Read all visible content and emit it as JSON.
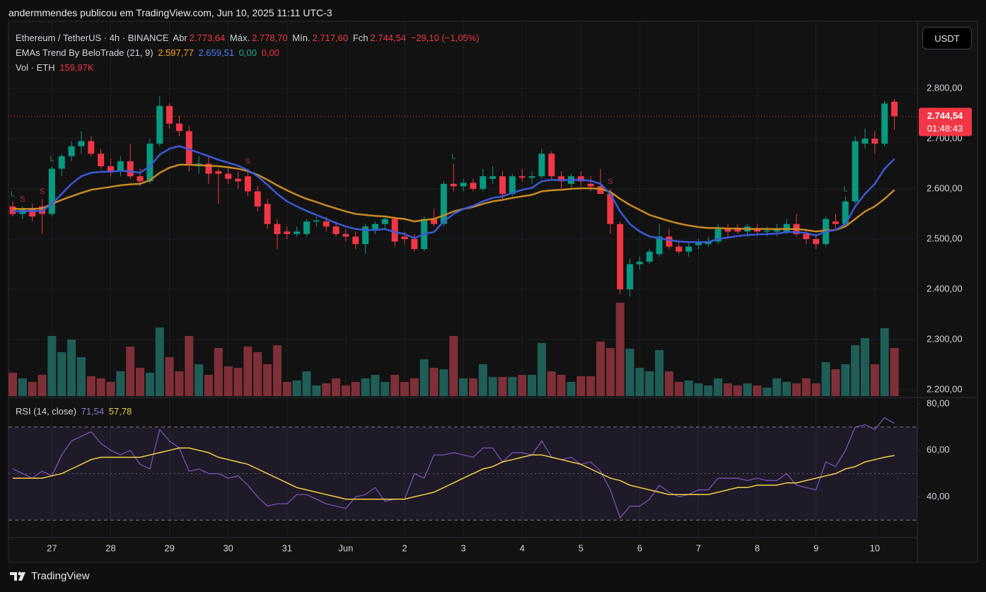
{
  "header": {
    "caption": "andermmendes publicou em TradingView.com, Jun 10, 2025 11:11 UTC-3",
    "currency_button": "USDT",
    "brand": "TradingView"
  },
  "chart_data": {
    "type": "candlestick",
    "legend": {
      "symbol": "Ethereum / TetherUS · 4h · BINANCE",
      "open_label": "Abr",
      "open": "2.773,64",
      "high_label": "Máx.",
      "high": "2.778,70",
      "low_label": "Mín.",
      "low": "2.717,60",
      "close_label": "Fch",
      "close": "2.744,54",
      "change": "−29,10 (−1,05%)",
      "indicator": "EMAs Trend By BeloTrade (21, 9)",
      "indicator_values": [
        "2.597,77",
        "2.659,51",
        "0,00",
        "0,00"
      ],
      "volume": "Vol · ETH",
      "volume_value": "159,97K"
    },
    "categories": [
      null,
      null,
      null,
      null,
      "27",
      null,
      null,
      null,
      null,
      null,
      "28",
      null,
      null,
      null,
      null,
      null,
      "29",
      null,
      null,
      null,
      null,
      null,
      "30",
      null,
      null,
      null,
      null,
      null,
      "31",
      null,
      null,
      null,
      null,
      null,
      "Jun",
      null,
      null,
      null,
      null,
      null,
      "2",
      null,
      null,
      null,
      null,
      null,
      "3",
      null,
      null,
      null,
      null,
      null,
      "4",
      null,
      null,
      null,
      null,
      null,
      "5",
      null,
      null,
      null,
      null,
      null,
      "6",
      null,
      null,
      null,
      null,
      null,
      "7",
      null,
      null,
      null,
      null,
      null,
      "8",
      null,
      null,
      null,
      null,
      null,
      "9",
      null,
      null,
      null,
      null,
      null,
      "10",
      null,
      null
    ],
    "ohlc": [
      [
        2565,
        2575,
        2545,
        2550
      ],
      [
        2550,
        2565,
        2540,
        2560
      ],
      [
        2560,
        2570,
        2535,
        2545
      ],
      [
        2565,
        2580,
        2510,
        2550
      ],
      [
        2550,
        2645,
        2545,
        2640
      ],
      [
        2640,
        2670,
        2625,
        2665
      ],
      [
        2665,
        2695,
        2655,
        2685
      ],
      [
        2685,
        2715,
        2670,
        2695
      ],
      [
        2695,
        2705,
        2665,
        2670
      ],
      [
        2670,
        2680,
        2640,
        2645
      ],
      [
        2645,
        2660,
        2625,
        2635
      ],
      [
        2635,
        2665,
        2625,
        2655
      ],
      [
        2655,
        2690,
        2620,
        2625
      ],
      [
        2625,
        2640,
        2605,
        2615
      ],
      [
        2615,
        2700,
        2610,
        2690
      ],
      [
        2690,
        2785,
        2685,
        2765
      ],
      [
        2765,
        2770,
        2720,
        2730
      ],
      [
        2730,
        2745,
        2705,
        2715
      ],
      [
        2715,
        2725,
        2635,
        2650
      ],
      [
        2645,
        2665,
        2630,
        2650
      ],
      [
        2650,
        2665,
        2610,
        2630
      ],
      [
        2635,
        2640,
        2570,
        2630
      ],
      [
        2630,
        2645,
        2610,
        2620
      ],
      [
        2620,
        2635,
        2600,
        2615
      ],
      [
        2625,
        2640,
        2585,
        2595
      ],
      [
        2595,
        2605,
        2555,
        2565
      ],
      [
        2570,
        2580,
        2520,
        2530
      ],
      [
        2530,
        2540,
        2480,
        2510
      ],
      [
        2515,
        2525,
        2500,
        2510
      ],
      [
        2510,
        2525,
        2505,
        2515
      ],
      [
        2510,
        2540,
        2505,
        2535
      ],
      [
        2535,
        2545,
        2525,
        2537
      ],
      [
        2535,
        2545,
        2515,
        2525
      ],
      [
        2525,
        2535,
        2505,
        2510
      ],
      [
        2510,
        2520,
        2495,
        2505
      ],
      [
        2505,
        2515,
        2480,
        2490
      ],
      [
        2490,
        2530,
        2470,
        2525
      ],
      [
        2520,
        2535,
        2510,
        2530
      ],
      [
        2530,
        2545,
        2520,
        2540
      ],
      [
        2540,
        2545,
        2485,
        2495
      ],
      [
        2505,
        2515,
        2490,
        2500
      ],
      [
        2500,
        2510,
        2475,
        2480
      ],
      [
        2480,
        2545,
        2475,
        2540
      ],
      [
        2540,
        2560,
        2525,
        2530
      ],
      [
        2530,
        2615,
        2525,
        2610
      ],
      [
        2610,
        2650,
        2595,
        2605
      ],
      [
        2605,
        2620,
        2595,
        2612
      ],
      [
        2612,
        2620,
        2595,
        2600
      ],
      [
        2600,
        2640,
        2595,
        2625
      ],
      [
        2620,
        2645,
        2610,
        2625
      ],
      [
        2625,
        2635,
        2580,
        2590
      ],
      [
        2590,
        2630,
        2585,
        2625
      ],
      [
        2625,
        2640,
        2615,
        2622
      ],
      [
        2622,
        2635,
        2610,
        2625
      ],
      [
        2625,
        2680,
        2620,
        2670
      ],
      [
        2670,
        2675,
        2620,
        2625
      ],
      [
        2625,
        2635,
        2600,
        2615
      ],
      [
        2610,
        2630,
        2600,
        2625
      ],
      [
        2625,
        2635,
        2605,
        2615
      ],
      [
        2610,
        2625,
        2595,
        2605
      ],
      [
        2605,
        2640,
        2590,
        2590
      ],
      [
        2590,
        2600,
        2510,
        2530
      ],
      [
        2530,
        2535,
        2390,
        2400
      ],
      [
        2400,
        2460,
        2385,
        2450
      ],
      [
        2450,
        2465,
        2440,
        2455
      ],
      [
        2455,
        2480,
        2450,
        2475
      ],
      [
        2470,
        2530,
        2465,
        2505
      ],
      [
        2505,
        2520,
        2480,
        2485
      ],
      [
        2485,
        2495,
        2470,
        2475
      ],
      [
        2475,
        2495,
        2465,
        2485
      ],
      [
        2488,
        2500,
        2480,
        2492
      ],
      [
        2490,
        2505,
        2485,
        2495
      ],
      [
        2495,
        2530,
        2490,
        2520
      ],
      [
        2520,
        2530,
        2505,
        2515
      ],
      [
        2520,
        2530,
        2510,
        2515
      ],
      [
        2515,
        2530,
        2505,
        2525
      ],
      [
        2520,
        2530,
        2510,
        2515
      ],
      [
        2515,
        2525,
        2505,
        2517
      ],
      [
        2515,
        2530,
        2505,
        2520
      ],
      [
        2515,
        2540,
        2510,
        2530
      ],
      [
        2530,
        2550,
        2505,
        2510
      ],
      [
        2510,
        2520,
        2490,
        2500
      ],
      [
        2500,
        2510,
        2480,
        2490
      ],
      [
        2490,
        2545,
        2485,
        2540
      ],
      [
        2535,
        2550,
        2520,
        2530
      ],
      [
        2530,
        2585,
        2525,
        2575
      ],
      [
        2575,
        2705,
        2570,
        2695
      ],
      [
        2690,
        2720,
        2680,
        2700
      ],
      [
        2700,
        2715,
        2670,
        2690
      ],
      [
        2690,
        2775,
        2685,
        2770
      ],
      [
        2773.64,
        2778.7,
        2717.6,
        2744.54
      ]
    ],
    "up_color": "#089981",
    "down_color": "#f23645",
    "volume": {
      "up_color": "#1f5e57",
      "down_color": "#7f2f37",
      "values": [
        77.6,
        58.8,
        47,
        70.5,
        199.8,
        145.7,
        188,
        129.3,
        65.8,
        58.8,
        47,
        82.3,
        164.5,
        94,
        77.6,
        228,
        129.3,
        82.3,
        199.8,
        105.8,
        70.5,
        159.8,
        98.7,
        94,
        164.5,
        145.7,
        105.8,
        169.2,
        47,
        51.7,
        82.3,
        35.3,
        42.3,
        58.8,
        35.3,
        47,
        58.8,
        70.5,
        47,
        70.5,
        47,
        58.8,
        122.2,
        94,
        89.3,
        199.8,
        58.8,
        58.8,
        105.8,
        63.5,
        63.5,
        63.5,
        70.5,
        70.5,
        176.3,
        82.3,
        70.5,
        47,
        65.8,
        65.8,
        181,
        159.8,
        310.2,
        157.5,
        94,
        82.3,
        152.8,
        82.3,
        47,
        51.7,
        42.3,
        35.3,
        58.8,
        42.3,
        35.3,
        42.3,
        35.3,
        28.2,
        58.8,
        47,
        42.3,
        58.8,
        42.3,
        112.8,
        89.3,
        105.8,
        169.2,
        192.7,
        105.8,
        225.6,
        159.97
      ]
    },
    "ema_lines": [
      {
        "color": "#c98a24",
        "values": [
          2560,
          2560,
          2560,
          2561,
          2570,
          2578,
          2585,
          2592,
          2598,
          2601,
          2604,
          2607,
          2609,
          2610,
          2617,
          2632,
          2642,
          2648,
          2648,
          2647,
          2646,
          2645,
          2643,
          2640,
          2635,
          2628,
          2618,
          2607,
          2597,
          2588,
          2580,
          2574,
          2567,
          2561,
          2555,
          2550,
          2548,
          2546,
          2545,
          2542,
          2540,
          2535,
          2538,
          2540,
          2547,
          2555,
          2560,
          2564,
          2570,
          2575,
          2578,
          2582,
          2585,
          2588,
          2595,
          2597,
          2598,
          2600,
          2601,
          2601,
          2600,
          2594,
          2580,
          2568,
          2558,
          2548,
          2542,
          2536,
          2531,
          2527,
          2524,
          2522,
          2522,
          2521,
          2521,
          2520,
          2520,
          2520,
          2520,
          2520,
          2520,
          2518,
          2515,
          2517,
          2518,
          2525,
          2540,
          2555,
          2565,
          2580,
          2597.77
        ]
      },
      {
        "color": "#3a5ad8",
        "values": [
          2555,
          2555,
          2556,
          2556,
          2570,
          2590,
          2610,
          2625,
          2632,
          2634,
          2634,
          2636,
          2635,
          2632,
          2645,
          2668,
          2680,
          2685,
          2679,
          2672,
          2665,
          2658,
          2652,
          2646,
          2637,
          2625,
          2608,
          2590,
          2575,
          2565,
          2556,
          2548,
          2540,
          2532,
          2525,
          2520,
          2518,
          2518,
          2520,
          2514,
          2510,
          2502,
          2510,
          2514,
          2535,
          2550,
          2560,
          2566,
          2575,
          2582,
          2585,
          2592,
          2598,
          2602,
          2615,
          2618,
          2617,
          2618,
          2618,
          2616,
          2610,
          2590,
          2555,
          2530,
          2515,
          2505,
          2502,
          2498,
          2495,
          2494,
          2494,
          2494,
          2500,
          2503,
          2506,
          2508,
          2509,
          2510,
          2511,
          2514,
          2514,
          2512,
          2507,
          2515,
          2518,
          2530,
          2565,
          2590,
          2610,
          2640,
          2659.51
        ]
      }
    ],
    "signals": [
      "L",
      "S",
      null,
      "S",
      "L",
      null,
      null,
      null,
      null,
      null,
      null,
      null,
      null,
      null,
      null,
      null,
      null,
      null,
      null,
      null,
      null,
      null,
      null,
      null,
      "S",
      null,
      null,
      null,
      null,
      null,
      null,
      null,
      null,
      null,
      null,
      null,
      null,
      null,
      null,
      null,
      null,
      null,
      null,
      null,
      null,
      "L",
      null,
      null,
      null,
      null,
      null,
      null,
      null,
      null,
      null,
      null,
      null,
      null,
      null,
      null,
      null,
      "S",
      null,
      null,
      null,
      null,
      null,
      null,
      null,
      null,
      null,
      null,
      null,
      null,
      null,
      null,
      null,
      null,
      null,
      null,
      null,
      null,
      null,
      null,
      null,
      "L",
      null,
      null,
      null,
      null,
      null
    ],
    "signal_colors": {
      "L": "#1f8a52",
      "S": "#b3303b"
    },
    "ylim": [
      2184.5,
      2933.8
    ],
    "yticks": [
      {
        "value": 2200,
        "label": "2.200,00"
      },
      {
        "value": 2300,
        "label": "2.300,00"
      },
      {
        "value": 2400,
        "label": "2.400,00"
      },
      {
        "value": 2500,
        "label": "2.500,00"
      },
      {
        "value": 2600,
        "label": "2.600,00"
      },
      {
        "value": 2700,
        "label": "2.700,00"
      },
      {
        "value": 2800,
        "label": "2.800,00"
      }
    ],
    "grid": true,
    "last_price": {
      "value": 2744.54,
      "label": "2.744,54",
      "countdown": "01:48:43"
    },
    "rsi": {
      "title": "RSI (14, close)",
      "ylim": [
        22.5,
        82.4
      ],
      "yticks": [
        {
          "value": 40,
          "label": "40,00"
        },
        {
          "value": 60,
          "label": "60,00"
        },
        {
          "value": 80,
          "label": "80,00"
        }
      ],
      "bands": [
        30,
        70
      ],
      "midline": 50,
      "series": [
        {
          "color": "#7e57c2",
          "value_label": "71,54",
          "values": [
            52,
            50,
            48,
            51,
            49,
            58,
            64,
            66,
            68,
            63,
            60,
            58,
            60,
            54,
            52,
            69,
            64,
            61,
            51,
            52,
            50,
            50,
            48,
            49,
            45,
            40,
            36,
            37,
            37,
            41,
            41,
            39,
            37,
            36,
            35,
            40,
            41,
            44,
            38,
            39,
            39,
            50,
            48,
            58,
            58,
            59,
            58,
            57,
            61,
            61,
            55,
            59,
            59,
            58,
            64,
            57,
            56,
            57,
            54,
            55,
            51,
            43,
            31,
            36,
            36,
            39,
            45,
            42,
            40,
            41,
            43,
            43,
            48,
            48,
            48,
            47,
            48,
            47,
            47,
            50,
            45,
            44,
            43,
            55,
            53,
            60,
            70,
            71,
            69,
            74,
            71.54
          ]
        },
        {
          "color": "#f5d142",
          "value_label": "57,78",
          "values": [
            48,
            48,
            48,
            48,
            49,
            50,
            52,
            54,
            56,
            57,
            57,
            57,
            57,
            57,
            58,
            59,
            60,
            61,
            61,
            60,
            59,
            57,
            56,
            55,
            54,
            52,
            50,
            48,
            46,
            44,
            43,
            42,
            41,
            40,
            39,
            39,
            39,
            39,
            39,
            39,
            39,
            40,
            41,
            42,
            44,
            46,
            48,
            50,
            52,
            53,
            55,
            56,
            57,
            58,
            58,
            57,
            56,
            55,
            54,
            52,
            50,
            48,
            47,
            45,
            44,
            43,
            42,
            41,
            41,
            41,
            41,
            41,
            42,
            43,
            44,
            44,
            45,
            45,
            45,
            46,
            46,
            47,
            48,
            49,
            50,
            52,
            53,
            55,
            56,
            57,
            57.78
          ]
        }
      ]
    }
  }
}
